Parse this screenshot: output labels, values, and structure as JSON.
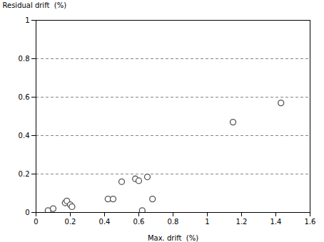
{
  "chart_data": {
    "type": "scatter",
    "x": [
      0.07,
      0.1,
      0.17,
      0.18,
      0.2,
      0.21,
      0.42,
      0.45,
      0.5,
      0.58,
      0.6,
      0.62,
      0.65,
      0.68,
      1.15,
      1.43
    ],
    "y": [
      0.01,
      0.02,
      0.05,
      0.06,
      0.04,
      0.03,
      0.07,
      0.07,
      0.16,
      0.175,
      0.165,
      0.01,
      0.185,
      0.07,
      0.47,
      0.57
    ],
    "xlim": [
      0,
      1.6
    ],
    "ylim": [
      0,
      1.0
    ],
    "xticks": [
      0,
      0.2,
      0.4,
      0.6,
      0.8,
      1.0,
      1.2,
      1.4,
      1.6
    ],
    "yticks": [
      0,
      0.2,
      0.4,
      0.6,
      0.8,
      1.0
    ],
    "xlabel": "Max. drift  (%)",
    "ylabel": "Residual drift  (%)",
    "grid": "y",
    "color": "#555555"
  }
}
